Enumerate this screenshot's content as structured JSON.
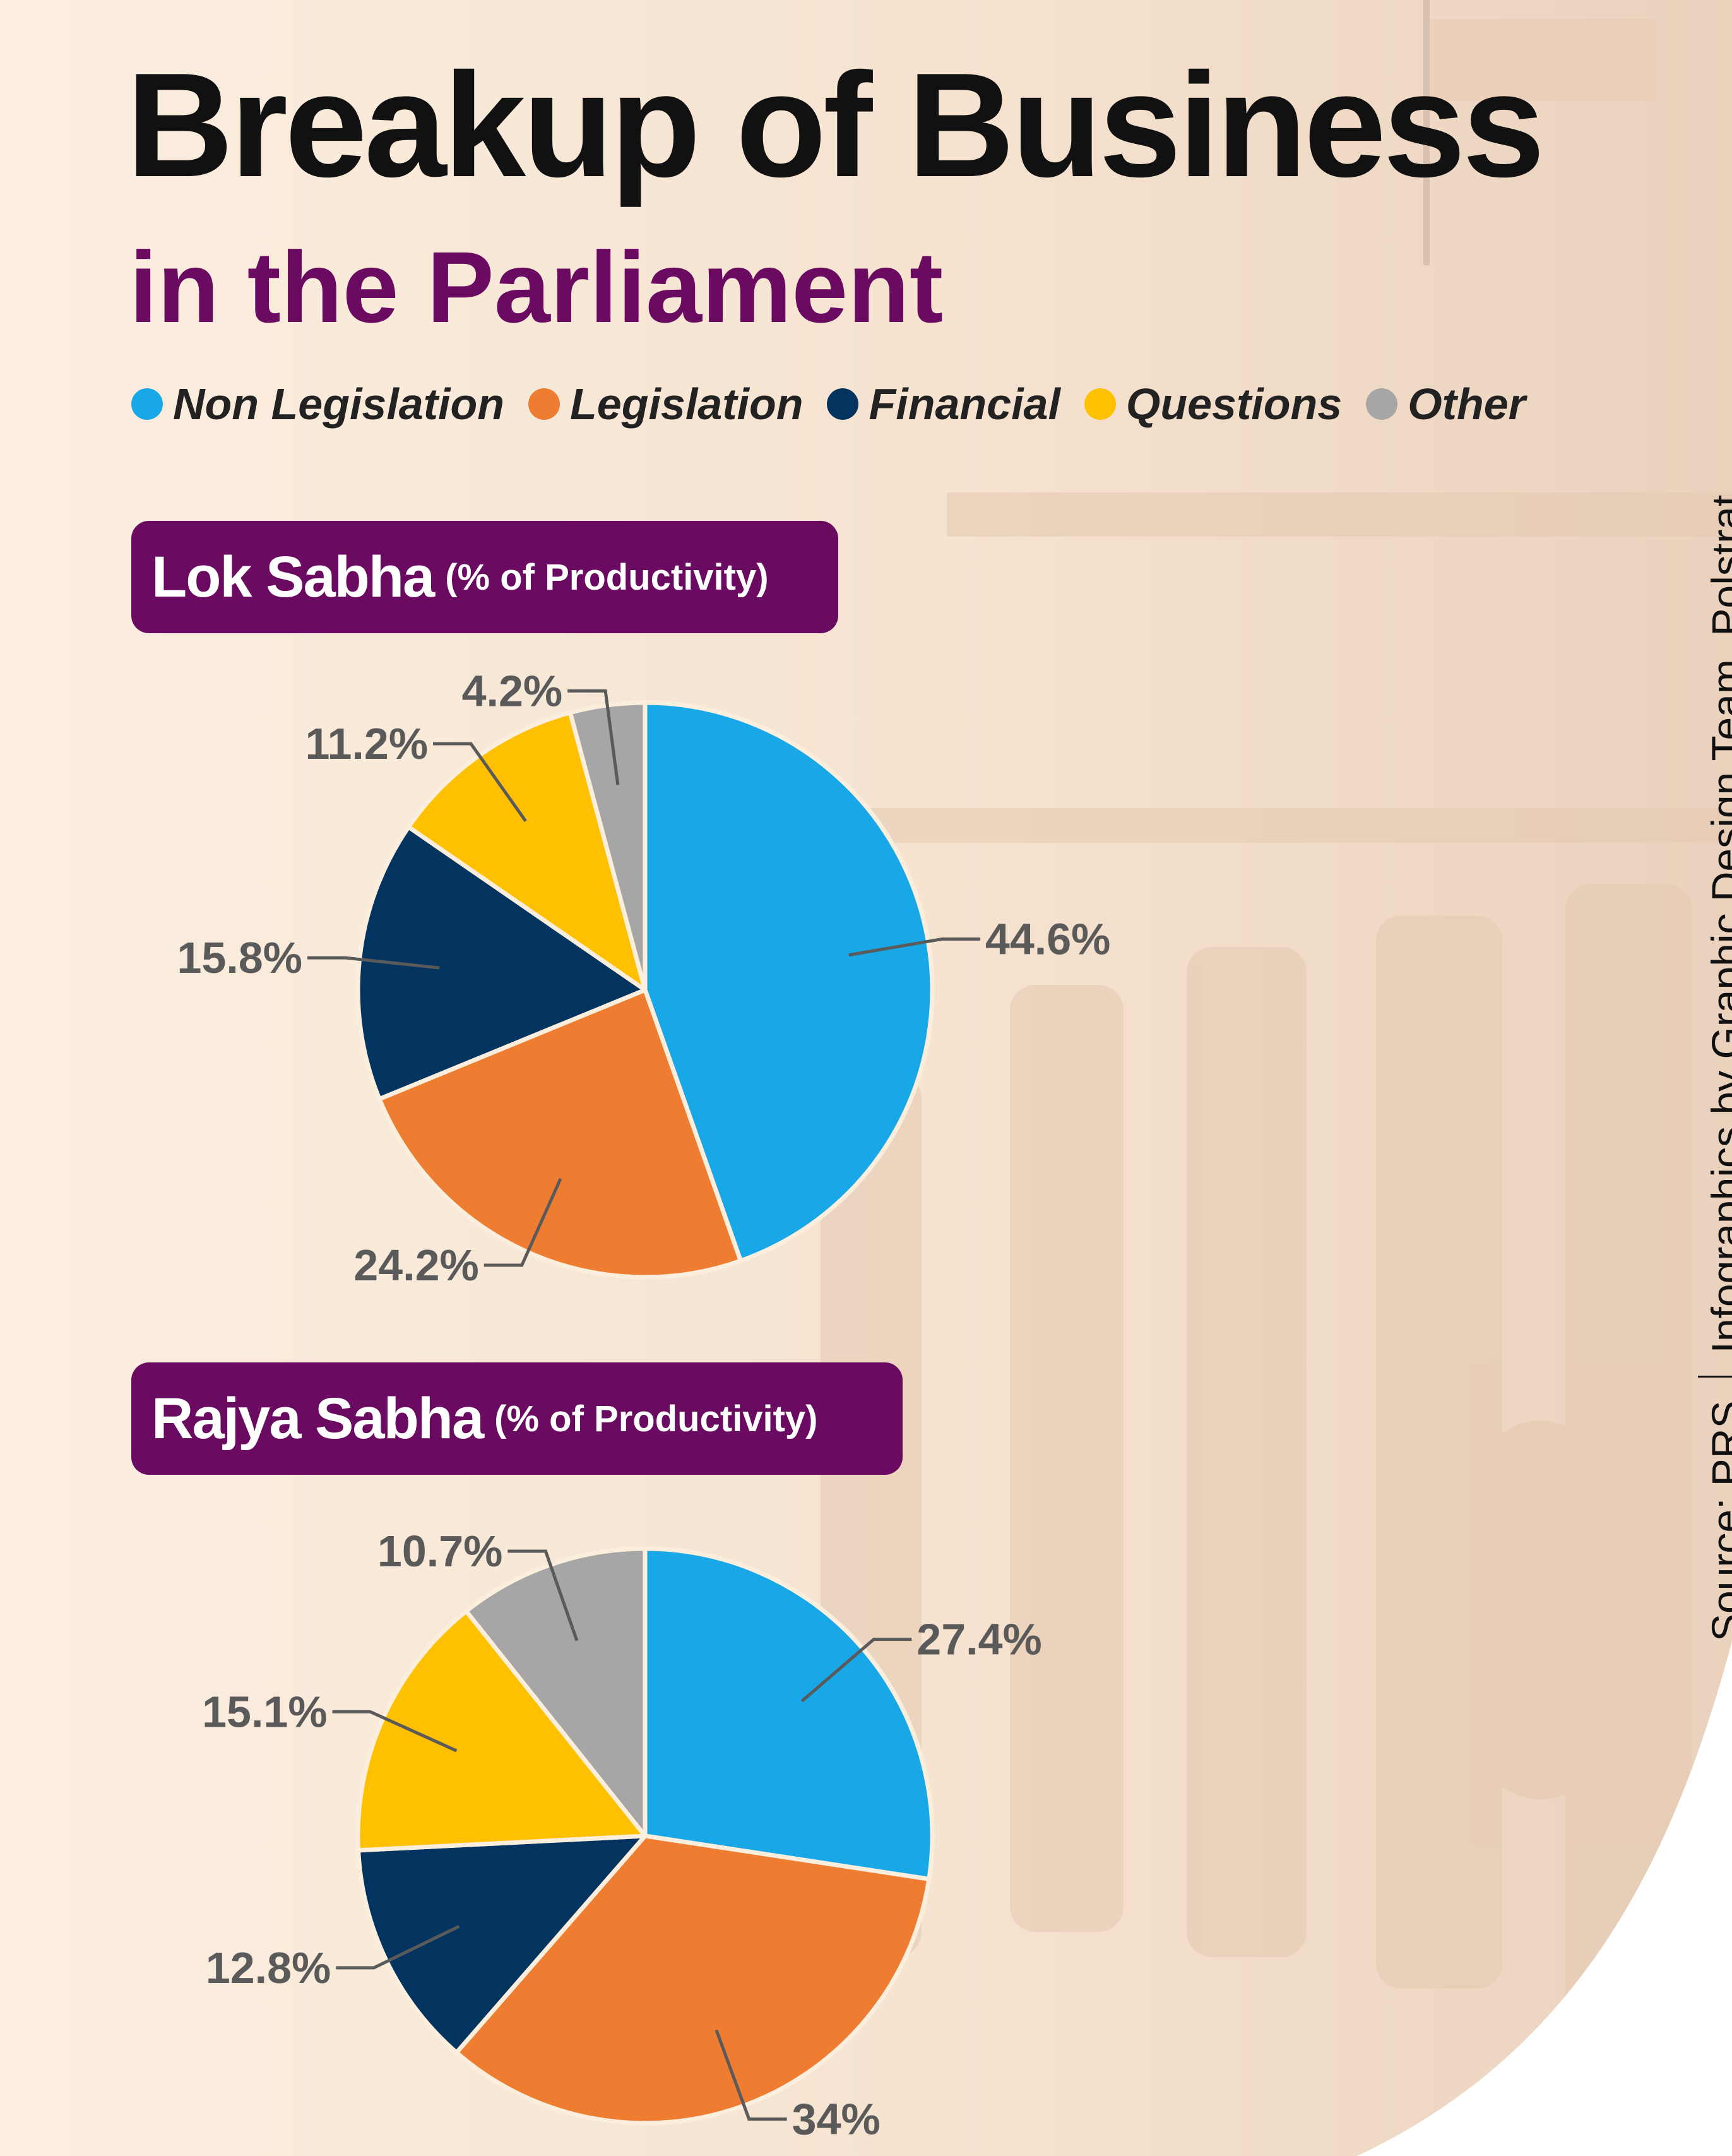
{
  "title": "Breakup of Business",
  "subtitle": "in the Parliament",
  "legend": [
    {
      "label": "Non Legislation",
      "color": "#18a8e8"
    },
    {
      "label": "Legislation",
      "color": "#ee7d32"
    },
    {
      "label": "Financial",
      "color": "#02345f"
    },
    {
      "label": "Questions",
      "color": "#ffc000"
    },
    {
      "label": "Other",
      "color": "#a6a6a6"
    }
  ],
  "source": {
    "source_text": "Source: PRS",
    "credit_text": "Infographics by Graphic Design Team, Polstrat"
  },
  "chart_data": [
    {
      "type": "pie",
      "title": "Lok Sabha",
      "title_note": "(% of Productivity)",
      "categories": [
        "Non Legislation",
        "Legislation",
        "Financial",
        "Questions",
        "Other"
      ],
      "values": [
        44.6,
        24.2,
        15.8,
        11.2,
        4.2
      ],
      "labels": [
        "44.6%",
        "24.2%",
        "15.8%",
        "11.2%",
        "4.2%"
      ],
      "colors": [
        "#18a8e8",
        "#ee7d32",
        "#02345f",
        "#ffc000",
        "#a6a6a6"
      ]
    },
    {
      "type": "pie",
      "title": "Rajya Sabha",
      "title_note": "(% of Productivity)",
      "categories": [
        "Non Legislation",
        "Legislation",
        "Financial",
        "Questions",
        "Other"
      ],
      "values": [
        27.4,
        34,
        12.8,
        15.1,
        10.7
      ],
      "labels": [
        "27.4%",
        "34%",
        "12.8%",
        "15.1%",
        "10.7%"
      ],
      "colors": [
        "#18a8e8",
        "#ee7d32",
        "#02345f",
        "#ffc000",
        "#a6a6a6"
      ]
    }
  ]
}
